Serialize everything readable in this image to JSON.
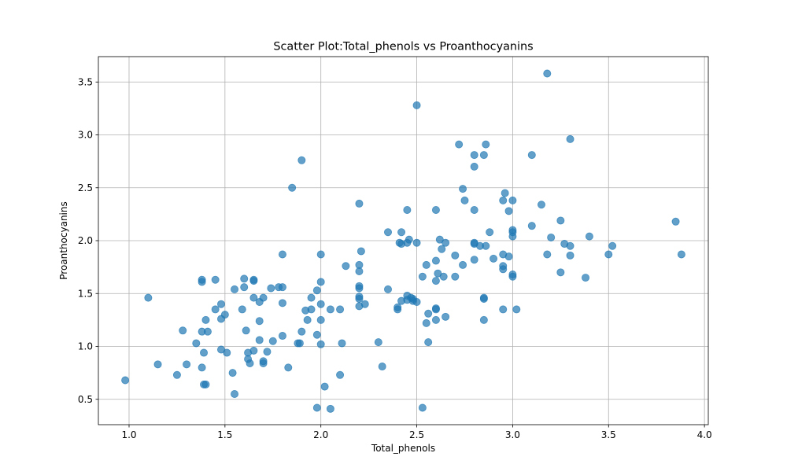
{
  "chart_data": {
    "type": "scatter",
    "title": "Scatter Plot:Total_phenols vs Proanthocyanins",
    "xlabel": "Total_phenols",
    "ylabel": "Proanthocyanins",
    "xlim": [
      0.84,
      4.02
    ],
    "ylim": [
      0.26,
      3.74
    ],
    "x_ticks": [
      1.0,
      1.5,
      2.0,
      2.5,
      3.0,
      3.5,
      4.0
    ],
    "y_ticks": [
      0.5,
      1.0,
      1.5,
      2.0,
      2.5,
      3.0,
      3.5
    ],
    "x_tick_labels": [
      "1.0",
      "1.5",
      "2.0",
      "2.5",
      "3.0",
      "3.5",
      "4.0"
    ],
    "y_tick_labels": [
      "0.5",
      "1.0",
      "1.5",
      "2.0",
      "2.5",
      "3.0",
      "3.5"
    ],
    "grid": true,
    "marker_color": "#1f77b4",
    "marker_alpha": 0.7,
    "points": [
      [
        0.98,
        0.68
      ],
      [
        1.1,
        1.46
      ],
      [
        1.15,
        0.83
      ],
      [
        1.25,
        0.73
      ],
      [
        1.28,
        1.15
      ],
      [
        1.3,
        0.83
      ],
      [
        1.35,
        1.03
      ],
      [
        1.38,
        1.63
      ],
      [
        1.38,
        1.61
      ],
      [
        1.38,
        1.14
      ],
      [
        1.38,
        0.8
      ],
      [
        1.39,
        0.94
      ],
      [
        1.39,
        0.64
      ],
      [
        1.4,
        0.64
      ],
      [
        1.4,
        1.25
      ],
      [
        1.41,
        1.14
      ],
      [
        1.45,
        1.35
      ],
      [
        1.45,
        1.63
      ],
      [
        1.48,
        1.26
      ],
      [
        1.48,
        1.4
      ],
      [
        1.48,
        0.97
      ],
      [
        1.5,
        1.3
      ],
      [
        1.51,
        0.94
      ],
      [
        1.54,
        0.75
      ],
      [
        1.55,
        0.55
      ],
      [
        1.55,
        1.54
      ],
      [
        1.59,
        1.35
      ],
      [
        1.6,
        1.56
      ],
      [
        1.6,
        1.64
      ],
      [
        1.61,
        1.15
      ],
      [
        1.62,
        0.94
      ],
      [
        1.62,
        0.88
      ],
      [
        1.63,
        0.84
      ],
      [
        1.65,
        1.62
      ],
      [
        1.65,
        1.63
      ],
      [
        1.65,
        0.96
      ],
      [
        1.65,
        1.46
      ],
      [
        1.68,
        1.42
      ],
      [
        1.68,
        1.24
      ],
      [
        1.68,
        1.06
      ],
      [
        1.7,
        1.46
      ],
      [
        1.7,
        0.86
      ],
      [
        1.7,
        0.84
      ],
      [
        1.72,
        0.95
      ],
      [
        1.74,
        1.55
      ],
      [
        1.75,
        1.05
      ],
      [
        1.78,
        1.56
      ],
      [
        1.8,
        1.56
      ],
      [
        1.8,
        1.41
      ],
      [
        1.8,
        1.1
      ],
      [
        1.8,
        1.87
      ],
      [
        1.83,
        0.8
      ],
      [
        1.85,
        2.5
      ],
      [
        1.88,
        1.03
      ],
      [
        1.89,
        1.03
      ],
      [
        1.9,
        1.14
      ],
      [
        1.9,
        2.76
      ],
      [
        1.92,
        1.34
      ],
      [
        1.93,
        1.25
      ],
      [
        1.95,
        1.35
      ],
      [
        1.95,
        1.46
      ],
      [
        1.98,
        1.53
      ],
      [
        1.98,
        1.11
      ],
      [
        1.98,
        0.42
      ],
      [
        2.0,
        1.87
      ],
      [
        2.0,
        1.61
      ],
      [
        2.0,
        1.4
      ],
      [
        2.0,
        1.25
      ],
      [
        2.0,
        1.02
      ],
      [
        2.02,
        0.62
      ],
      [
        2.05,
        1.35
      ],
      [
        2.05,
        0.41
      ],
      [
        2.1,
        1.35
      ],
      [
        2.1,
        0.73
      ],
      [
        2.11,
        1.03
      ],
      [
        2.13,
        1.76
      ],
      [
        2.2,
        2.35
      ],
      [
        2.2,
        1.77
      ],
      [
        2.2,
        1.71
      ],
      [
        2.2,
        1.57
      ],
      [
        2.2,
        1.55
      ],
      [
        2.2,
        1.47
      ],
      [
        2.2,
        1.45
      ],
      [
        2.2,
        1.38
      ],
      [
        2.21,
        1.9
      ],
      [
        2.23,
        1.4
      ],
      [
        2.3,
        1.04
      ],
      [
        2.32,
        0.81
      ],
      [
        2.35,
        2.08
      ],
      [
        2.35,
        1.54
      ],
      [
        2.4,
        1.35
      ],
      [
        2.4,
        1.37
      ],
      [
        2.41,
        1.98
      ],
      [
        2.42,
        2.08
      ],
      [
        2.42,
        1.97
      ],
      [
        2.42,
        1.43
      ],
      [
        2.45,
        2.29
      ],
      [
        2.45,
        1.98
      ],
      [
        2.45,
        1.48
      ],
      [
        2.45,
        1.44
      ],
      [
        2.46,
        2.01
      ],
      [
        2.47,
        1.46
      ],
      [
        2.48,
        1.45
      ],
      [
        2.48,
        1.43
      ],
      [
        2.5,
        3.28
      ],
      [
        2.5,
        1.98
      ],
      [
        2.5,
        1.42
      ],
      [
        2.53,
        1.66
      ],
      [
        2.53,
        0.42
      ],
      [
        2.55,
        1.77
      ],
      [
        2.55,
        1.22
      ],
      [
        2.56,
        1.31
      ],
      [
        2.56,
        1.04
      ],
      [
        2.6,
        2.29
      ],
      [
        2.6,
        1.81
      ],
      [
        2.6,
        1.62
      ],
      [
        2.6,
        1.36
      ],
      [
        2.6,
        1.35
      ],
      [
        2.6,
        1.25
      ],
      [
        2.61,
        1.69
      ],
      [
        2.62,
        2.01
      ],
      [
        2.63,
        1.92
      ],
      [
        2.64,
        1.66
      ],
      [
        2.65,
        1.98
      ],
      [
        2.65,
        1.28
      ],
      [
        2.7,
        1.86
      ],
      [
        2.7,
        1.66
      ],
      [
        2.72,
        2.91
      ],
      [
        2.74,
        2.49
      ],
      [
        2.74,
        1.77
      ],
      [
        2.75,
        2.38
      ],
      [
        2.8,
        2.81
      ],
      [
        2.8,
        2.7
      ],
      [
        2.8,
        2.29
      ],
      [
        2.8,
        1.98
      ],
      [
        2.8,
        1.97
      ],
      [
        2.8,
        1.82
      ],
      [
        2.83,
        1.95
      ],
      [
        2.85,
        2.81
      ],
      [
        2.85,
        1.46
      ],
      [
        2.85,
        1.45
      ],
      [
        2.85,
        1.25
      ],
      [
        2.86,
        2.91
      ],
      [
        2.86,
        1.95
      ],
      [
        2.88,
        2.08
      ],
      [
        2.9,
        1.83
      ],
      [
        2.95,
        2.38
      ],
      [
        2.95,
        1.87
      ],
      [
        2.95,
        1.76
      ],
      [
        2.95,
        1.73
      ],
      [
        2.95,
        1.35
      ],
      [
        2.96,
        2.45
      ],
      [
        2.98,
        2.28
      ],
      [
        2.98,
        1.85
      ],
      [
        3.0,
        2.38
      ],
      [
        3.0,
        2.1
      ],
      [
        3.0,
        2.08
      ],
      [
        3.0,
        2.04
      ],
      [
        3.0,
        1.68
      ],
      [
        3.0,
        1.66
      ],
      [
        3.02,
        1.35
      ],
      [
        3.1,
        2.81
      ],
      [
        3.1,
        2.14
      ],
      [
        3.15,
        2.34
      ],
      [
        3.18,
        3.58
      ],
      [
        3.18,
        1.87
      ],
      [
        3.2,
        2.03
      ],
      [
        3.25,
        2.19
      ],
      [
        3.25,
        1.7
      ],
      [
        3.27,
        1.97
      ],
      [
        3.3,
        2.96
      ],
      [
        3.3,
        1.95
      ],
      [
        3.3,
        1.86
      ],
      [
        3.38,
        1.65
      ],
      [
        3.4,
        2.04
      ],
      [
        3.5,
        1.87
      ],
      [
        3.52,
        1.95
      ],
      [
        3.85,
        2.18
      ],
      [
        3.88,
        1.87
      ]
    ]
  }
}
